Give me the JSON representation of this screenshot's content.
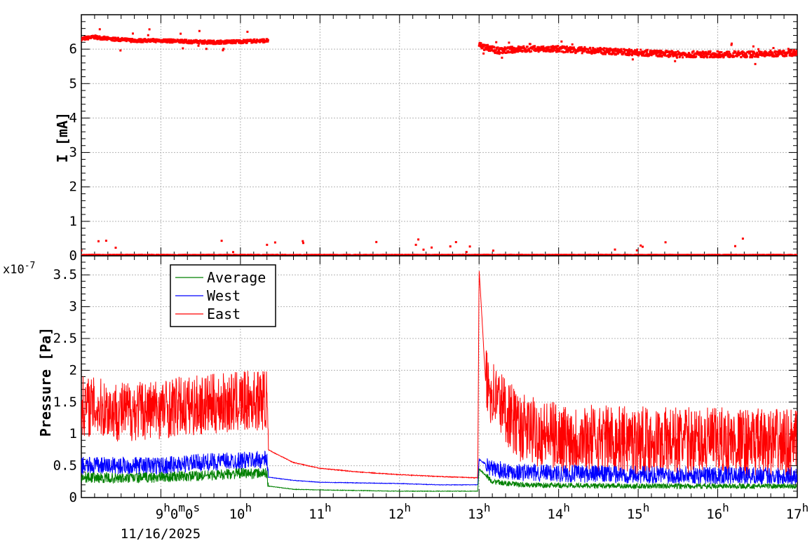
{
  "chart_data": [
    {
      "type": "scatter",
      "ylabel": "I [mA]",
      "ylim": [
        0,
        7
      ],
      "yticks": [
        "0",
        "1",
        "2",
        "3",
        "4",
        "5",
        "6"
      ],
      "xlim": [
        "08:00",
        "17:00"
      ],
      "grid": true,
      "series": [
        {
          "color": "#ff0000",
          "points": [
            [
              "08:00",
              6.3
            ],
            [
              "08:10",
              6.35
            ],
            [
              "08:20",
              6.3
            ],
            [
              "08:40",
              6.25
            ],
            [
              "09:00",
              6.25
            ],
            [
              "09:20",
              6.22
            ],
            [
              "09:40",
              6.2
            ],
            [
              "10:00",
              6.22
            ],
            [
              "10:20",
              6.25
            ],
            [
              "13:00",
              6.1
            ],
            [
              "13:15",
              5.95
            ],
            [
              "13:30",
              6.0
            ],
            [
              "14:00",
              6.0
            ],
            [
              "14:30",
              5.95
            ],
            [
              "15:00",
              5.9
            ],
            [
              "15:30",
              5.85
            ],
            [
              "16:00",
              5.85
            ],
            [
              "16:30",
              5.85
            ],
            [
              "17:00",
              5.9
            ],
            [
              "08:00",
              0.0
            ],
            [
              "09:00",
              0.0
            ],
            [
              "10:00",
              0.0
            ],
            [
              "11:00",
              0.0
            ],
            [
              "12:00",
              0.0
            ],
            [
              "13:00",
              0.0
            ],
            [
              "14:00",
              0.0
            ],
            [
              "15:00",
              0.0
            ],
            [
              "16:00",
              0.0
            ],
            [
              "17:00",
              0.0
            ]
          ]
        }
      ]
    },
    {
      "type": "line",
      "ylabel": "Pressure [Pa]",
      "yexponent": "x10",
      "yexponent_power": "-7",
      "ylim": [
        0,
        3.8
      ],
      "yticks": [
        "0",
        "0.5",
        "1",
        "1.5",
        "2",
        "2.5",
        "3",
        "3.5"
      ],
      "xlim": [
        "08:00",
        "17:00"
      ],
      "xticks": [
        {
          "time": "09:00",
          "label": "9",
          "sup": "h",
          "label2": "0",
          "sup2": "m",
          "label3": "0",
          "sup3": "s"
        },
        {
          "time": "10:00",
          "label": "10",
          "sup": "h"
        },
        {
          "time": "11:00",
          "label": "11",
          "sup": "h"
        },
        {
          "time": "12:00",
          "label": "12",
          "sup": "h"
        },
        {
          "time": "13:00",
          "label": "13",
          "sup": "h"
        },
        {
          "time": "14:00",
          "label": "14",
          "sup": "h"
        },
        {
          "time": "15:00",
          "label": "15",
          "sup": "h"
        },
        {
          "time": "16:00",
          "label": "16",
          "sup": "h"
        },
        {
          "time": "17:00",
          "label": "17",
          "sup": "h"
        }
      ],
      "date_label": "11/16/2025",
      "grid": true,
      "legend_position": "top-left",
      "series": [
        {
          "name": "Average",
          "color": "#008000",
          "points": [
            [
              "08:00",
              0.32
            ],
            [
              "08:30",
              0.3
            ],
            [
              "09:00",
              0.32
            ],
            [
              "09:30",
              0.34
            ],
            [
              "10:00",
              0.38
            ],
            [
              "10:20",
              0.38
            ],
            [
              "10:21",
              0.18
            ],
            [
              "10:40",
              0.13
            ],
            [
              "11:00",
              0.12
            ],
            [
              "11:30",
              0.11
            ],
            [
              "12:00",
              0.1
            ],
            [
              "12:30",
              0.1
            ],
            [
              "12:59",
              0.1
            ],
            [
              "13:00",
              0.45
            ],
            [
              "13:10",
              0.25
            ],
            [
              "13:30",
              0.2
            ],
            [
              "14:00",
              0.19
            ],
            [
              "15:00",
              0.18
            ],
            [
              "16:00",
              0.18
            ],
            [
              "17:00",
              0.18
            ]
          ]
        },
        {
          "name": "West",
          "color": "#0000ff",
          "points": [
            [
              "08:00",
              0.5
            ],
            [
              "08:30",
              0.5
            ],
            [
              "09:00",
              0.5
            ],
            [
              "09:30",
              0.55
            ],
            [
              "10:00",
              0.58
            ],
            [
              "10:20",
              0.6
            ],
            [
              "10:21",
              0.32
            ],
            [
              "10:40",
              0.27
            ],
            [
              "11:00",
              0.24
            ],
            [
              "11:30",
              0.23
            ],
            [
              "12:00",
              0.22
            ],
            [
              "12:30",
              0.2
            ],
            [
              "12:59",
              0.2
            ],
            [
              "13:00",
              0.6
            ],
            [
              "13:10",
              0.45
            ],
            [
              "13:30",
              0.4
            ],
            [
              "14:00",
              0.38
            ],
            [
              "15:00",
              0.36
            ],
            [
              "16:00",
              0.35
            ],
            [
              "17:00",
              0.34
            ]
          ]
        },
        {
          "name": "East",
          "color": "#ff0000",
          "points": [
            [
              "08:00",
              1.45
            ],
            [
              "08:30",
              1.35
            ],
            [
              "09:00",
              1.4
            ],
            [
              "09:30",
              1.45
            ],
            [
              "10:00",
              1.5
            ],
            [
              "10:20",
              1.55
            ],
            [
              "10:21",
              0.75
            ],
            [
              "10:40",
              0.55
            ],
            [
              "11:00",
              0.46
            ],
            [
              "11:30",
              0.4
            ],
            [
              "12:00",
              0.36
            ],
            [
              "12:30",
              0.33
            ],
            [
              "12:59",
              0.31
            ],
            [
              "13:00",
              3.6
            ],
            [
              "13:05",
              1.8
            ],
            [
              "13:30",
              1.1
            ],
            [
              "14:00",
              0.95
            ],
            [
              "15:00",
              0.9
            ],
            [
              "16:00",
              0.88
            ],
            [
              "17:00",
              0.85
            ]
          ]
        }
      ]
    }
  ]
}
